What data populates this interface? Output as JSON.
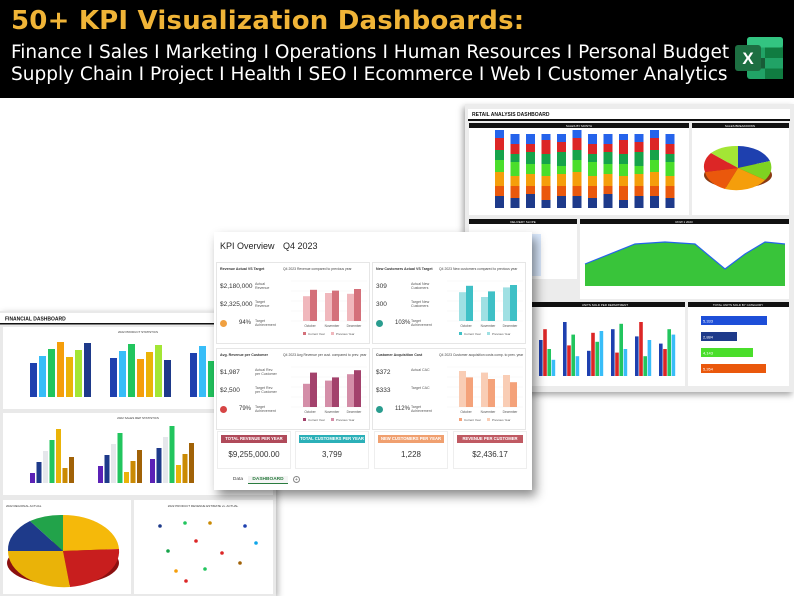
{
  "banner": {
    "title": "50+ KPI Visualization Dashboards:",
    "line1": "Finance I Sales I Marketing I Operations I Human Resources I Personal Budget",
    "line2": "Supply Chain I Project I Health I SEO I Ecommerce I Web I Customer Analytics",
    "icon": "excel-icon"
  },
  "retail": {
    "title": "RETAIL ANALYSIS DASHBOARD",
    "section_titles": [
      "SALES BY MONTH",
      "SALES BREAKDOWN",
      "DELIVERY SLOPE",
      "ROW 1 2023",
      "UNITS SOLD PER DEPARTMENT",
      "TOTAL UNITS SOLD BY CATEGORY"
    ],
    "category_bars": [
      "5,333",
      "2,884",
      "4,143",
      "5,264"
    ]
  },
  "financial": {
    "title": "FINANCIAL DASHBOARD",
    "section_titles": [
      "2022 PRODUCT STATISTICS",
      "2022 SALES REP STATISTICS",
      "2022 REGIONAL ACTUAL",
      "2022 PRODUCT REVENUE ESTIMATE vs. ACTUAL"
    ]
  },
  "kpi": {
    "title": "KPI Overview",
    "period": "Q4 2023",
    "cards": [
      {
        "title": "Revenue Actual VS Target",
        "chart_title": "Q4 2023 Revenue compared to previous year",
        "v1": "$2,180,000",
        "l1": "Actual Revenue",
        "v2": "$2,325,000",
        "l2": "Target Revenue",
        "pct": "94%",
        "l3": "Target Achievement",
        "status": "warning"
      },
      {
        "title": "New Customers Actual VS Target",
        "chart_title": "Q4 2023 New customers compared to previous year",
        "v1": "309",
        "l1": "Actual New Customers",
        "v2": "300",
        "l2": "Target New Customers",
        "pct": "103%",
        "l3": "Target Achievement",
        "status": "ok"
      },
      {
        "title": "Avg. Revenue per Customer",
        "chart_title": "Q4 2023 Avg Revenue per cust. compared to prev. year",
        "v1": "$1,987",
        "l1": "Actual Rev. per Customer",
        "v2": "$2,500",
        "l2": "Target Rev. per Customer",
        "pct": "79%",
        "l3": "Target Achievement",
        "status": "bad"
      },
      {
        "title": "Customer Acquisition Cost",
        "chart_title": "Q4 2023 Customer acquisition costs comp. to prev. year",
        "v1": "$372",
        "l1": "Actual CAC",
        "v2": "$333",
        "l2": "Target CAC",
        "pct": "112%",
        "l3": "Target Achievement",
        "status": "ok"
      }
    ],
    "months": [
      "October",
      "November",
      "December"
    ],
    "legend": [
      "Current Year",
      "Previous Year"
    ],
    "summary": [
      {
        "label": "TOTAL REVENUE PER YEAR",
        "value": "$9,255,000.00",
        "color": "#b04a5a"
      },
      {
        "label": "TOTAL CUSTOMERS PER YEAR",
        "value": "3,799",
        "color": "#2bb0b8"
      },
      {
        "label": "NEW CUSTOMERS PER YEAR",
        "value": "1,228",
        "color": "#f0a070"
      },
      {
        "label": "REVENUE PER CUSTOMER",
        "value": "$2,436.17",
        "color": "#c05a63"
      }
    ],
    "tabs": [
      "Data",
      "DASHBOARD"
    ],
    "active_tab": "DASHBOARD"
  },
  "colors": {
    "gold": "#f0b437",
    "excel_green": "#1d6f42",
    "kpi_pink": "#d4707a",
    "kpi_teal": "#3fc0c6",
    "kpi_orange": "#f4a27a",
    "kpi_purple": "#a3426c"
  }
}
